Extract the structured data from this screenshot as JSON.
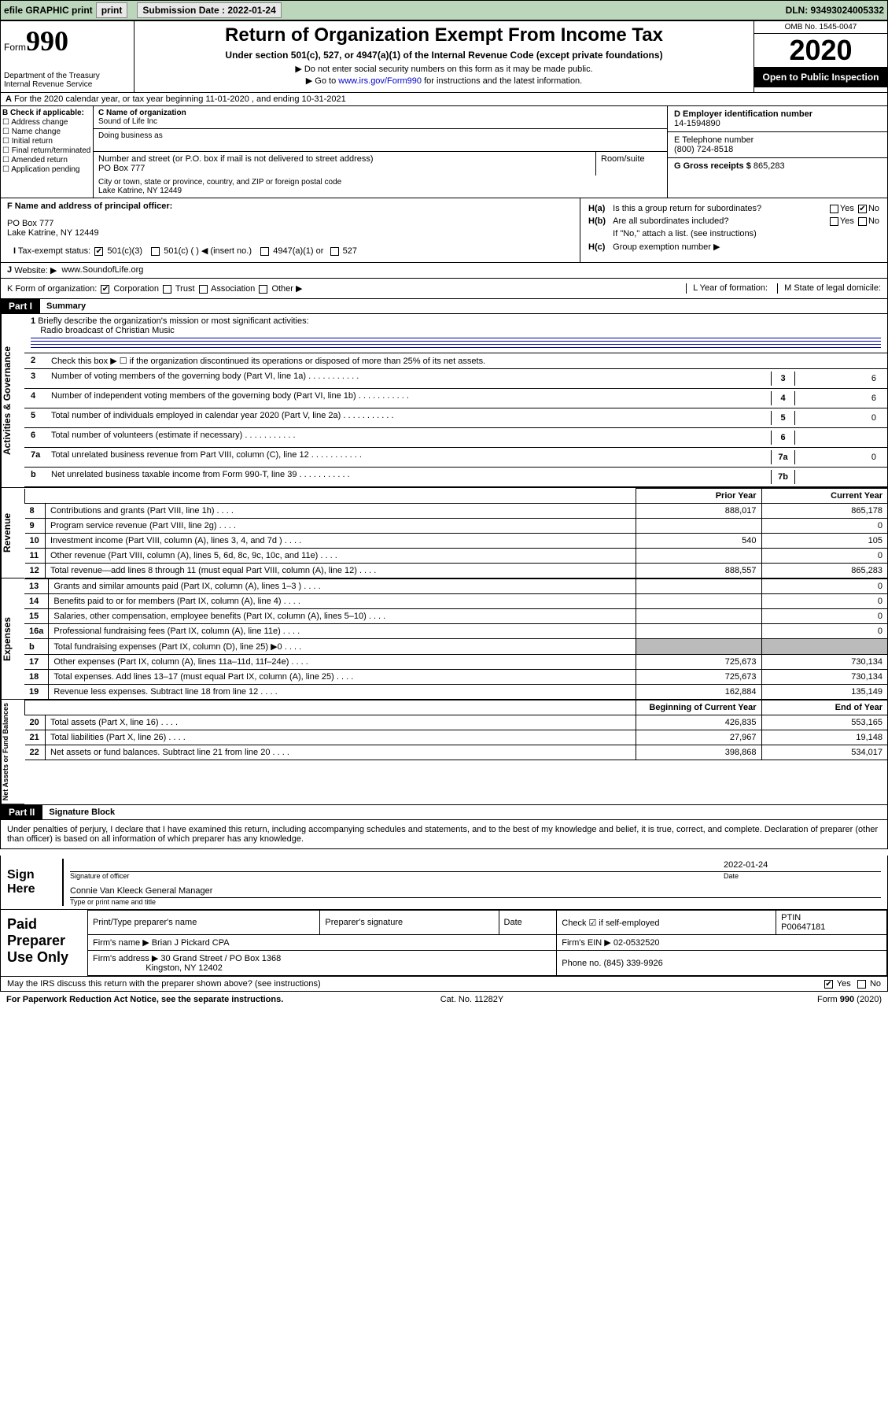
{
  "colors": {
    "topbar_bg": "#bcd6bc",
    "link": "#0000cc",
    "black": "#000000",
    "white": "#ffffff",
    "grey": "#bbbbbb",
    "rule": "#0000aa"
  },
  "topbar": {
    "efile": "efile GRAPHIC print",
    "sub_label": "Submission Date : 2022-01-24",
    "dln": "DLN: 93493024005332"
  },
  "header": {
    "form_word": "Form",
    "form_num": "990",
    "dept": "Department of the Treasury\nInternal Revenue Service",
    "title": "Return of Organization Exempt From Income Tax",
    "sub1": "Under section 501(c), 527, or 4947(a)(1) of the Internal Revenue Code (except private foundations)",
    "sub2": "▶ Do not enter social security numbers on this form as it may be made public.",
    "sub3_pre": "▶ Go to ",
    "sub3_link": "www.irs.gov/Form990",
    "sub3_post": " for instructions and the latest information.",
    "omb": "OMB No. 1545-0047",
    "year": "2020",
    "open": "Open to Public Inspection"
  },
  "lineA": "For the 2020 calendar year, or tax year beginning 11-01-2020    , and ending 10-31-2021",
  "B": {
    "label": "B Check if applicable:",
    "items": [
      "Address change",
      "Name change",
      "Initial return",
      "Final return/terminated",
      "Amended return",
      "Application pending"
    ]
  },
  "C": {
    "name_label": "C Name of organization",
    "name": "Sound of Life Inc",
    "dba_label": "Doing business as",
    "dba": "",
    "addr_label": "Number and street (or P.O. box if mail is not delivered to street address)",
    "addr": "PO Box 777",
    "room_label": "Room/suite",
    "city_label": "City or town, state or province, country, and ZIP or foreign postal code",
    "city": "Lake Katrine, NY  12449"
  },
  "D": {
    "label": "D Employer identification number",
    "ein": "14-1594890"
  },
  "E": {
    "label": "E Telephone number",
    "tel": "(800) 724-8518"
  },
  "G": {
    "label": "G Gross receipts $",
    "val": "865,283"
  },
  "F": {
    "label": "F  Name and address of principal officer:",
    "addr1": "PO Box 777",
    "addr2": "Lake Katrine, NY  12449"
  },
  "H": {
    "a": "Is this a group return for subordinates?",
    "a_yes": "Yes",
    "a_no": "No",
    "b": "Are all subordinates included?",
    "b_yes": "Yes",
    "b_no": "No",
    "b_note": "If \"No,\" attach a list. (see instructions)",
    "c": "Group exemption number ▶"
  },
  "I": {
    "label": "Tax-exempt status:",
    "o1": "501(c)(3)",
    "o2": "501(c) (  ) ◀ (insert no.)",
    "o3": "4947(a)(1) or",
    "o4": "527"
  },
  "J": {
    "label": "Website: ▶",
    "val": "www.SoundofLife.org"
  },
  "K": {
    "label": "K Form of organization:",
    "o1": "Corporation",
    "o2": "Trust",
    "o3": "Association",
    "o4": "Other ▶"
  },
  "L": {
    "label": "L Year of formation:",
    "val": ""
  },
  "M": {
    "label": "M State of legal domicile:",
    "val": ""
  },
  "partI": {
    "hdr": "Part I",
    "title": "Summary"
  },
  "summary": {
    "tab": "Activities & Governance",
    "l1": {
      "n": "1",
      "t": "Briefly describe the organization's mission or most significant activities:",
      "v": "Radio broadcast of Christian Music"
    },
    "l2": {
      "n": "2",
      "t": "Check this box ▶ ☐  if the organization discontinued its operations or disposed of more than 25% of its net assets."
    },
    "rows": [
      {
        "n": "3",
        "t": "Number of voting members of the governing body (Part VI, line 1a)",
        "b": "3",
        "v": "6"
      },
      {
        "n": "4",
        "t": "Number of independent voting members of the governing body (Part VI, line 1b)",
        "b": "4",
        "v": "6"
      },
      {
        "n": "5",
        "t": "Total number of individuals employed in calendar year 2020 (Part V, line 2a)",
        "b": "5",
        "v": "0"
      },
      {
        "n": "6",
        "t": "Total number of volunteers (estimate if necessary)",
        "b": "6",
        "v": ""
      },
      {
        "n": "7a",
        "t": "Total unrelated business revenue from Part VIII, column (C), line 12",
        "b": "7a",
        "v": "0"
      },
      {
        "n": "b",
        "t": "Net unrelated business taxable income from Form 990-T, line 39",
        "b": "7b",
        "v": ""
      }
    ]
  },
  "rev": {
    "tab": "Revenue",
    "hdr_py": "Prior Year",
    "hdr_cy": "Current Year",
    "rows": [
      {
        "n": "8",
        "t": "Contributions and grants (Part VIII, line 1h)",
        "py": "888,017",
        "cy": "865,178"
      },
      {
        "n": "9",
        "t": "Program service revenue (Part VIII, line 2g)",
        "py": "",
        "cy": "0"
      },
      {
        "n": "10",
        "t": "Investment income (Part VIII, column (A), lines 3, 4, and 7d )",
        "py": "540",
        "cy": "105"
      },
      {
        "n": "11",
        "t": "Other revenue (Part VIII, column (A), lines 5, 6d, 8c, 9c, 10c, and 11e)",
        "py": "",
        "cy": "0"
      },
      {
        "n": "12",
        "t": "Total revenue—add lines 8 through 11 (must equal Part VIII, column (A), line 12)",
        "py": "888,557",
        "cy": "865,283"
      }
    ]
  },
  "exp": {
    "tab": "Expenses",
    "rows": [
      {
        "n": "13",
        "t": "Grants and similar amounts paid (Part IX, column (A), lines 1–3 )",
        "py": "",
        "cy": "0"
      },
      {
        "n": "14",
        "t": "Benefits paid to or for members (Part IX, column (A), line 4)",
        "py": "",
        "cy": "0"
      },
      {
        "n": "15",
        "t": "Salaries, other compensation, employee benefits (Part IX, column (A), lines 5–10)",
        "py": "",
        "cy": "0"
      },
      {
        "n": "16a",
        "t": "Professional fundraising fees (Part IX, column (A), line 11e)",
        "py": "",
        "cy": "0"
      },
      {
        "n": "b",
        "t": "Total fundraising expenses (Part IX, column (D), line 25) ▶0",
        "py": "GREY",
        "cy": "GREY"
      },
      {
        "n": "17",
        "t": "Other expenses (Part IX, column (A), lines 11a–11d, 11f–24e)",
        "py": "725,673",
        "cy": "730,134"
      },
      {
        "n": "18",
        "t": "Total expenses. Add lines 13–17 (must equal Part IX, column (A), line 25)",
        "py": "725,673",
        "cy": "730,134"
      },
      {
        "n": "19",
        "t": "Revenue less expenses. Subtract line 18 from line 12",
        "py": "162,884",
        "cy": "135,149"
      }
    ]
  },
  "net": {
    "tab": "Net Assets or Fund Balances",
    "hdr_py": "Beginning of Current Year",
    "hdr_cy": "End of Year",
    "rows": [
      {
        "n": "20",
        "t": "Total assets (Part X, line 16)",
        "py": "426,835",
        "cy": "553,165"
      },
      {
        "n": "21",
        "t": "Total liabilities (Part X, line 26)",
        "py": "27,967",
        "cy": "19,148"
      },
      {
        "n": "22",
        "t": "Net assets or fund balances. Subtract line 21 from line 20",
        "py": "398,868",
        "cy": "534,017"
      }
    ]
  },
  "partII": {
    "hdr": "Part II",
    "title": "Signature Block"
  },
  "perjury": "Under penalties of perjury, I declare that I have examined this return, including accompanying schedules and statements, and to the best of my knowledge and belief, it is true, correct, and complete. Declaration of preparer (other than officer) is based on all information of which preparer has any knowledge.",
  "sign": {
    "lab": "Sign Here",
    "sig": "Signature of officer",
    "date_lbl": "Date",
    "date": "2022-01-24",
    "name": "Connie Van Kleeck  General Manager",
    "name_lbl": "Type or print name and title"
  },
  "prep": {
    "lab": "Paid Preparer Use Only",
    "h1": "Print/Type preparer's name",
    "h2": "Preparer's signature",
    "h3": "Date",
    "h4": "Check ☑ if self-employed",
    "h5": "PTIN",
    "ptin": "P00647181",
    "firm_lbl": "Firm's name    ▶",
    "firm": "Brian J Pickard CPA",
    "ein_lbl": "Firm's EIN ▶",
    "ein": "02-0532520",
    "addr_lbl": "Firm's address ▶",
    "addr1": "30 Grand Street / PO Box 1368",
    "addr2": "Kingston, NY  12402",
    "phone_lbl": "Phone no.",
    "phone": "(845) 339-9926"
  },
  "discuss": {
    "t": "May the IRS discuss this return with the preparer shown above? (see instructions)",
    "yes": "Yes",
    "no": "No"
  },
  "footer": {
    "l": "For Paperwork Reduction Act Notice, see the separate instructions.",
    "c": "Cat. No. 11282Y",
    "r": "Form 990 (2020)"
  }
}
